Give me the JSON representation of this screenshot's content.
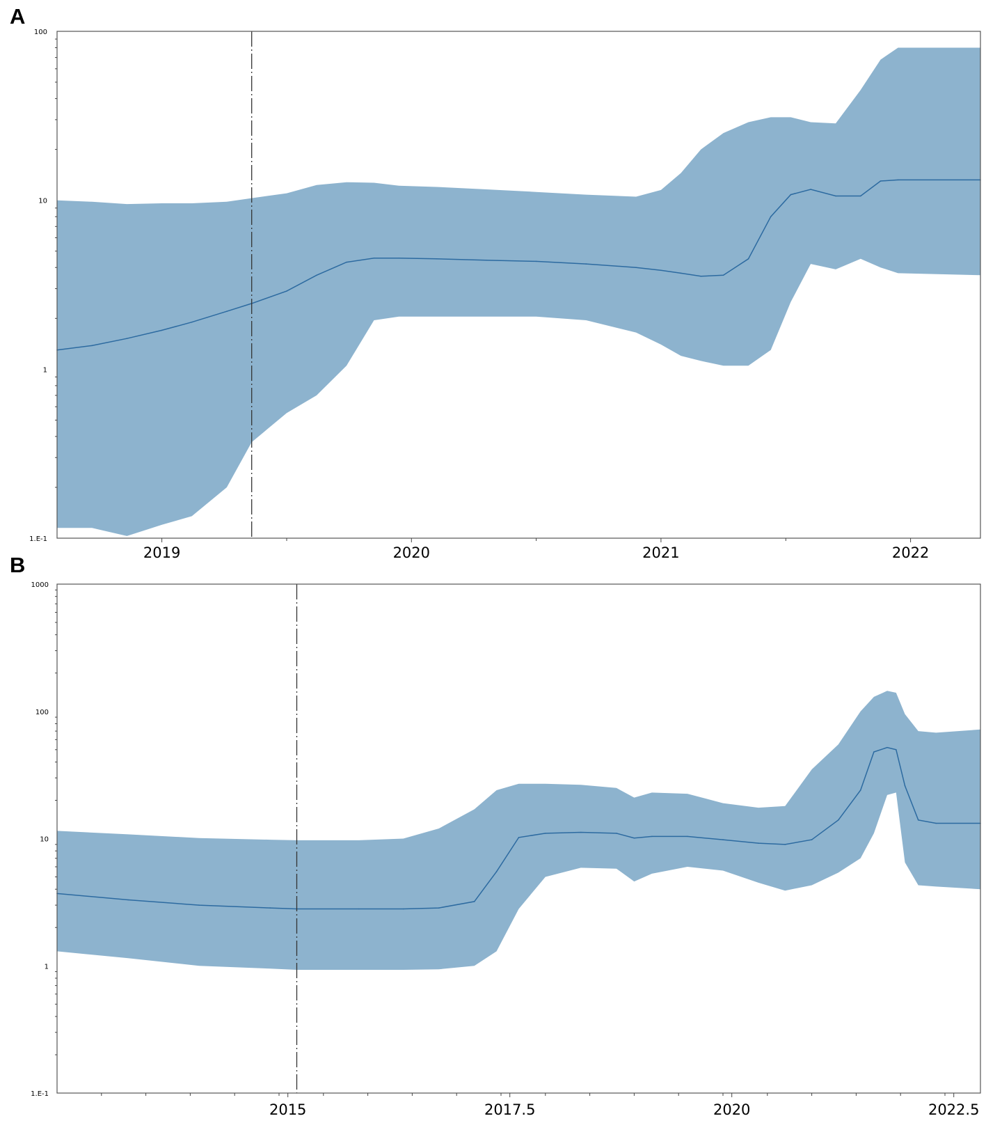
{
  "colors": {
    "band": "#8db3ce",
    "median": "#2c6aa0",
    "frame": "#555555"
  },
  "chart_data": [
    {
      "panel": "A",
      "type": "area",
      "scale": "log",
      "x_range": [
        2018.58,
        2022.28
      ],
      "y_range": [
        0.1,
        100
      ],
      "vline_x": 2019.36,
      "y_ticks": [
        {
          "value": 100,
          "label": "100"
        },
        {
          "value": 10,
          "label": "10"
        },
        {
          "value": 1,
          "label": "1"
        },
        {
          "value": 0.1,
          "label": "1.E-1"
        }
      ],
      "x_ticks": [
        {
          "value": 2019,
          "label": "2019"
        },
        {
          "value": 2020,
          "label": "2020"
        },
        {
          "value": 2021,
          "label": "2021"
        },
        {
          "value": 2022,
          "label": "2022"
        }
      ],
      "x_minor": [
        2019.5,
        2020.5,
        2021.5
      ],
      "x": [
        2018.58,
        2018.72,
        2018.86,
        2019.0,
        2019.12,
        2019.26,
        2019.36,
        2019.5,
        2019.62,
        2019.74,
        2019.85,
        2019.95,
        2020.1,
        2020.3,
        2020.5,
        2020.7,
        2020.9,
        2021.0,
        2021.08,
        2021.16,
        2021.25,
        2021.35,
        2021.44,
        2021.52,
        2021.6,
        2021.7,
        2021.8,
        2021.88,
        2021.95,
        2022.28
      ],
      "lower": [
        0.115,
        0.115,
        0.103,
        0.12,
        0.135,
        0.2,
        0.37,
        0.55,
        0.7,
        1.05,
        1.95,
        2.05,
        2.05,
        2.05,
        2.05,
        1.95,
        1.65,
        1.4,
        1.2,
        1.12,
        1.05,
        1.05,
        1.3,
        2.5,
        4.2,
        3.9,
        4.5,
        4.0,
        3.7,
        3.6
      ],
      "median": [
        1.3,
        1.38,
        1.52,
        1.7,
        1.9,
        2.2,
        2.45,
        2.9,
        3.6,
        4.3,
        4.55,
        4.55,
        4.5,
        4.42,
        4.35,
        4.2,
        4.0,
        3.85,
        3.7,
        3.55,
        3.6,
        4.5,
        8.0,
        10.8,
        11.6,
        10.6,
        10.6,
        13.0,
        13.2,
        13.2
      ],
      "upper": [
        10.0,
        9.8,
        9.5,
        9.6,
        9.6,
        9.8,
        10.3,
        11.0,
        12.3,
        12.8,
        12.7,
        12.2,
        12.0,
        11.6,
        11.2,
        10.8,
        10.5,
        11.5,
        14.5,
        20.0,
        25.0,
        29.0,
        31.0,
        31.0,
        29.0,
        28.5,
        45.0,
        68.0,
        80.0,
        80.0
      ]
    },
    {
      "panel": "B",
      "type": "area",
      "scale": "log",
      "x_range": [
        2012.4,
        2022.8
      ],
      "y_range": [
        0.1,
        1000
      ],
      "vline_x": 2015.1,
      "y_ticks": [
        {
          "value": 1000,
          "label": "1000"
        },
        {
          "value": 100,
          "label": "100"
        },
        {
          "value": 10,
          "label": "10"
        },
        {
          "value": 1,
          "label": "1"
        },
        {
          "value": 0.1,
          "label": "1.E-1"
        }
      ],
      "x_ticks": [
        {
          "value": 2015,
          "label": "2015"
        },
        {
          "value": 2017.5,
          "label": "2017.5"
        },
        {
          "value": 2020,
          "label": "2020"
        },
        {
          "value": 2022.5,
          "label": "2022.5"
        }
      ],
      "x_minor": [
        2012.9,
        2013.4,
        2013.9,
        2014.4,
        2014.9,
        2015.4,
        2015.9,
        2016.4,
        2016.9,
        2017.4,
        2017.9,
        2018.4,
        2018.9,
        2019.4,
        2019.9,
        2020.4,
        2020.9,
        2021.4,
        2021.9,
        2022.4
      ],
      "x": [
        2012.4,
        2013.2,
        2014.0,
        2014.8,
        2015.1,
        2015.8,
        2016.3,
        2016.7,
        2017.1,
        2017.35,
        2017.6,
        2017.9,
        2018.3,
        2018.7,
        2018.9,
        2019.1,
        2019.5,
        2019.9,
        2020.3,
        2020.6,
        2020.9,
        2021.2,
        2021.45,
        2021.6,
        2021.75,
        2021.85,
        2021.95,
        2022.1,
        2022.3,
        2022.8
      ],
      "lower": [
        1.3,
        1.15,
        1.0,
        0.95,
        0.93,
        0.93,
        0.93,
        0.94,
        1.0,
        1.3,
        2.8,
        5.0,
        5.9,
        5.8,
        4.6,
        5.3,
        6.0,
        5.6,
        4.5,
        3.9,
        4.3,
        5.4,
        7.0,
        11.0,
        22.0,
        23.0,
        6.5,
        4.3,
        4.2,
        4.0
      ],
      "median": [
        3.7,
        3.3,
        3.0,
        2.85,
        2.8,
        2.8,
        2.8,
        2.85,
        3.2,
        5.5,
        10.2,
        11.0,
        11.2,
        11.0,
        10.1,
        10.4,
        10.4,
        9.8,
        9.2,
        9.0,
        9.8,
        14.0,
        24.0,
        48.0,
        52.0,
        50.0,
        26.0,
        14.0,
        13.2,
        13.2
      ],
      "upper": [
        11.5,
        10.8,
        10.1,
        9.8,
        9.7,
        9.7,
        10.0,
        12.0,
        17.0,
        24.0,
        27.0,
        27.0,
        26.5,
        25.0,
        21.0,
        23.0,
        22.5,
        19.0,
        17.5,
        18.0,
        35.0,
        55.0,
        100.0,
        130.0,
        145.0,
        140.0,
        95.0,
        70.0,
        68.0,
        72.0
      ]
    }
  ],
  "panels": [
    {
      "label": "A"
    },
    {
      "label": "B"
    }
  ]
}
